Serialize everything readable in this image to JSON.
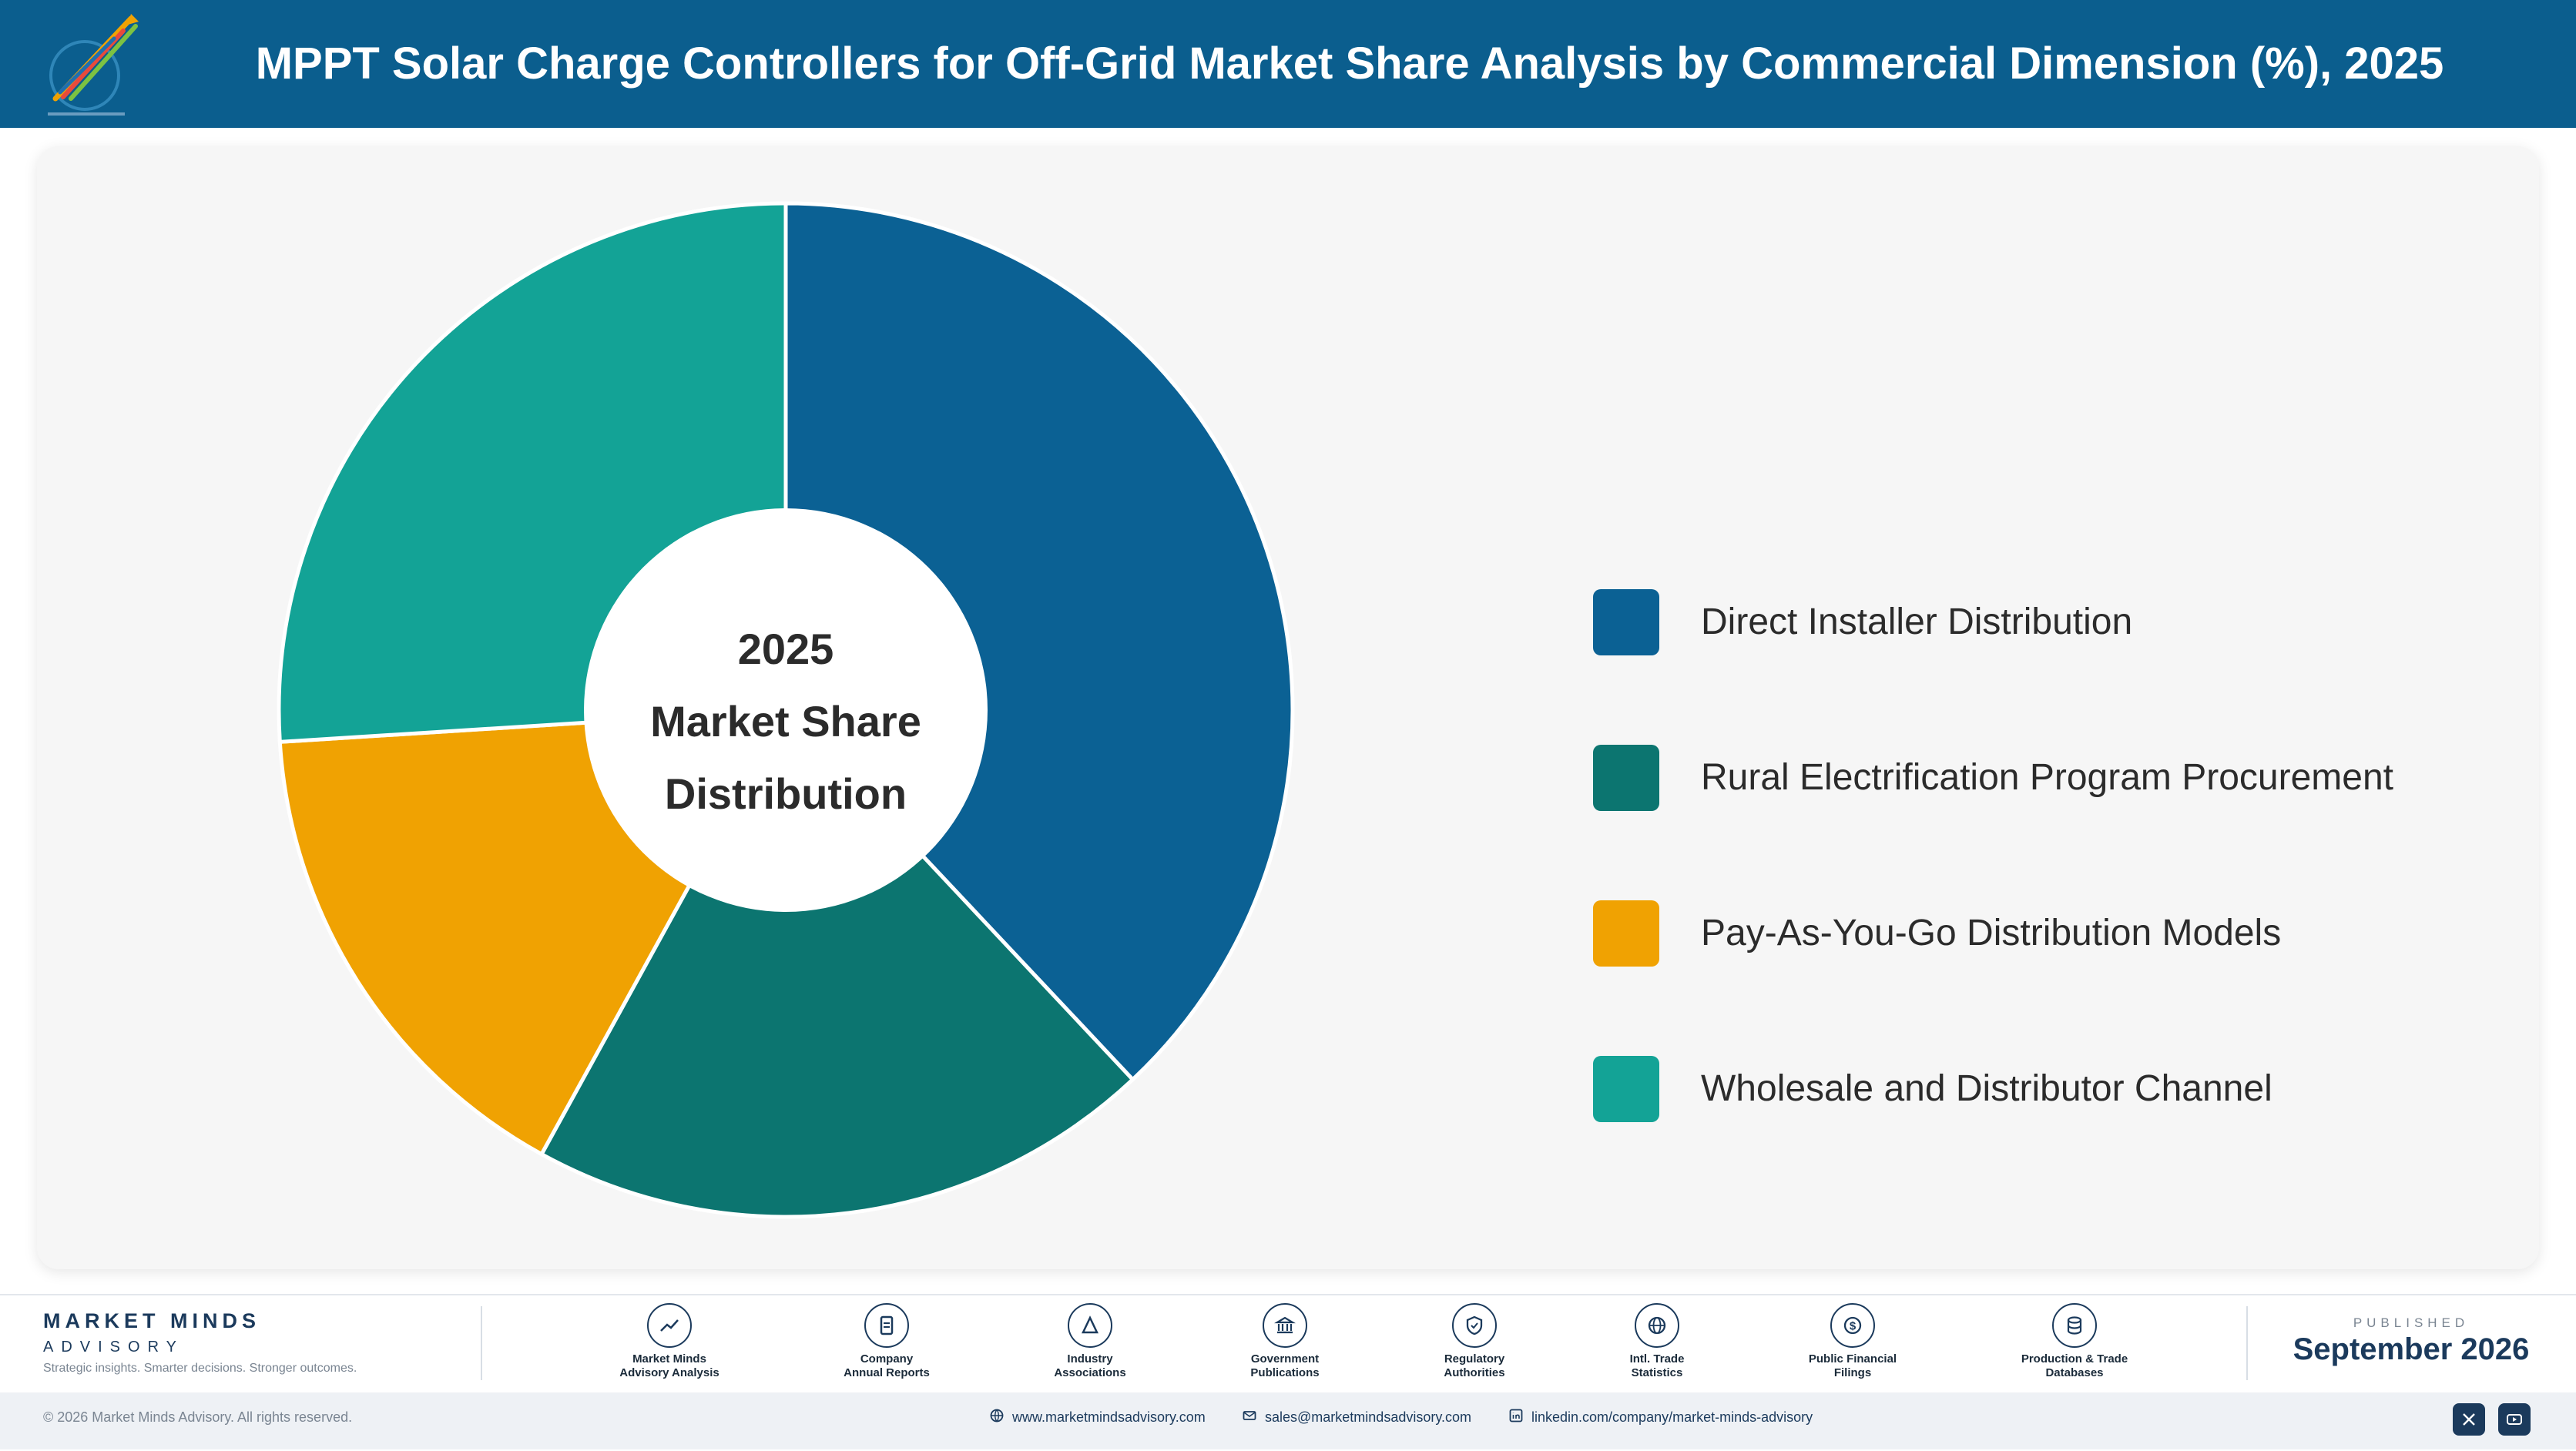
{
  "header": {
    "title": "MPPT Solar Charge Controllers for Off-Grid Market Share Analysis by Commercial Dimension (%), 2025"
  },
  "chart_data": {
    "type": "pie",
    "variant": "donut",
    "center_label": [
      "2025",
      "Market Share",
      "Distribution"
    ],
    "categories": [
      "Direct Installer Distribution",
      "Rural Electrification Program Procurement",
      "Pay-As-You-Go Distribution Models",
      "Wholesale and Distributor Channel"
    ],
    "values": [
      38,
      20,
      16,
      26
    ],
    "colors": [
      "#0b6194",
      "#0c7570",
      "#f0a202",
      "#13a396"
    ],
    "legend_position": "right"
  },
  "footer": {
    "brand": {
      "name": "MARKET MINDS",
      "sub": "ADVISORY",
      "tagline": "Strategic insights. Smarter decisions. Stronger outcomes."
    },
    "sources": [
      {
        "line1": "Market Minds",
        "line2": "Advisory Analysis",
        "icon": "trend-icon"
      },
      {
        "line1": "Company",
        "line2": "Annual Reports",
        "icon": "document-icon"
      },
      {
        "line1": "Industry",
        "line2": "Associations",
        "icon": "network-icon"
      },
      {
        "line1": "Government",
        "line2": "Publications",
        "icon": "government-icon"
      },
      {
        "line1": "Regulatory",
        "line2": "Authorities",
        "icon": "shield-icon"
      },
      {
        "line1": "Intl. Trade",
        "line2": "Statistics",
        "icon": "globe-icon"
      },
      {
        "line1": "Public Financial",
        "line2": "Filings",
        "icon": "dollar-icon"
      },
      {
        "line1": "Production & Trade",
        "line2": "Databases",
        "icon": "database-icon"
      }
    ],
    "published_label": "PUBLISHED",
    "published_date": "September 2026",
    "copyright": "© 2026 Market Minds Advisory. All rights reserved.",
    "website": "www.marketmindsadvisory.com",
    "email": "sales@marketmindsadvisory.com",
    "linkedin": "linkedin.com/company/market-minds-advisory"
  }
}
